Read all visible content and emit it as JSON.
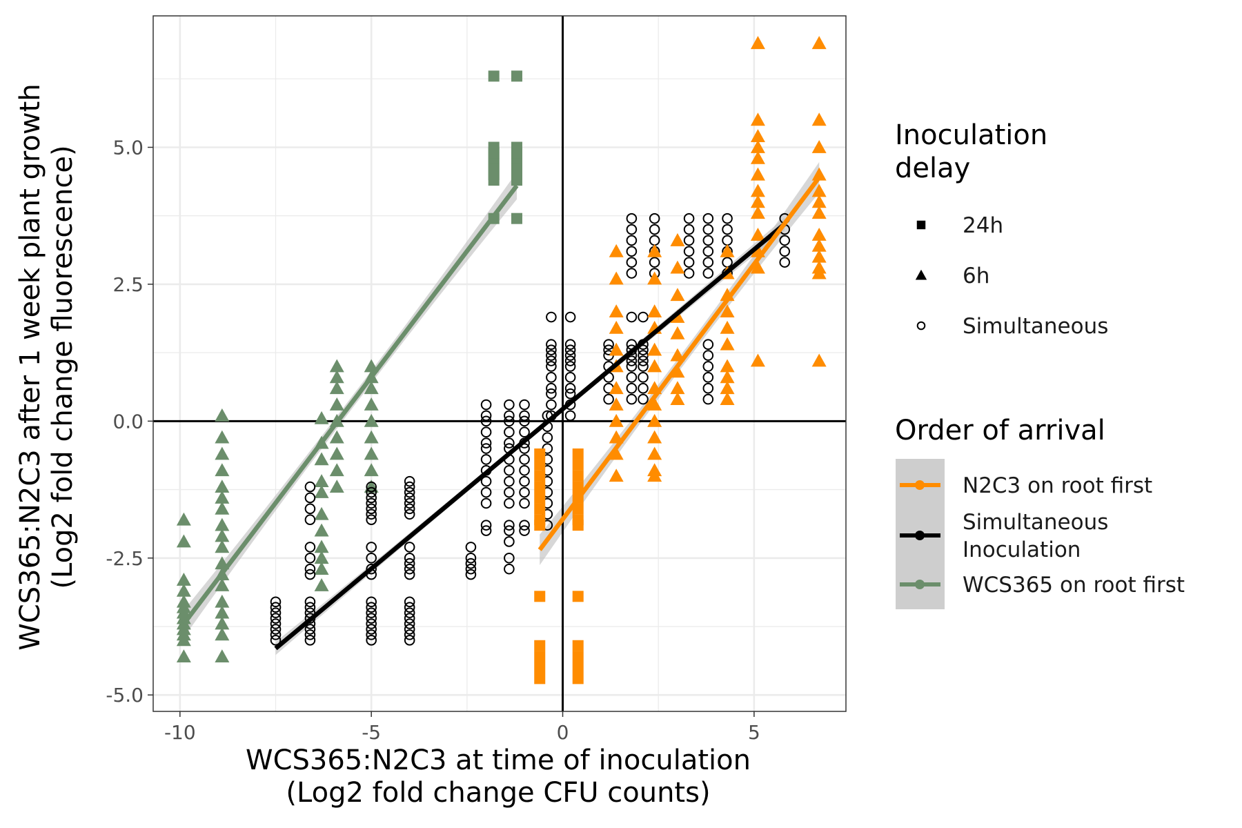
{
  "chart_data": {
    "type": "scatter",
    "xlabel": [
      "WCS365:N2C3 at time of inoculation",
      "(Log2 fold change CFU counts)"
    ],
    "ylabel": [
      "WCS365:N2C3 after 1 week plant growth",
      "(Log2 fold change fluorescence)"
    ],
    "xlim": [
      -10.7,
      7.4
    ],
    "ylim": [
      -5.3,
      7.4
    ],
    "x_ticks": [
      -10,
      -5,
      0,
      5
    ],
    "x_tick_labels": [
      "-10",
      "-5",
      "0",
      "5"
    ],
    "y_ticks": [
      -5,
      -2.5,
      0,
      2.5,
      5
    ],
    "y_tick_labels": [
      "-5.0",
      "-2.5",
      "0.0",
      "2.5",
      "5.0"
    ],
    "grid": true,
    "reference_lines": {
      "x": 0,
      "y": 0
    },
    "colors": {
      "n2c3_first": "#ff8c00",
      "simultaneous": "#000000",
      "wcs365_first": "#6b8e6b",
      "ribbon": "#bdbdbd",
      "grid": "#ebebeb",
      "tick": "#4d4d4d"
    },
    "legends": [
      {
        "title": [
          "Inoculation",
          " delay"
        ],
        "entries": [
          {
            "label": "24h",
            "shape": "square"
          },
          {
            "label": "6h",
            "shape": "triangle"
          },
          {
            "label": "Simultaneous",
            "shape": "circle-open"
          }
        ]
      },
      {
        "title": [
          "Order of arrival"
        ],
        "entries": [
          {
            "label": [
              "N2C3 on root first"
            ],
            "color": "#ff8c00"
          },
          {
            "label": [
              "Simultaneous",
              "Inoculation"
            ],
            "color": "#000000"
          },
          {
            "label": [
              "WCS365 on root first"
            ],
            "color": "#6b8e6b"
          }
        ]
      }
    ],
    "fits": [
      {
        "order": "WCS365 on root first",
        "color": "#6b8e6b",
        "x": [
          -9.9,
          -1.2
        ],
        "y": [
          -3.7,
          4.3
        ],
        "ci": 0.25
      },
      {
        "order": "Simultaneous Inoculation",
        "color": "#000000",
        "x": [
          -7.5,
          5.8
        ],
        "y": [
          -4.15,
          3.6
        ],
        "ci": 0.12
      },
      {
        "order": "N2C3 on root first",
        "color": "#ff8c00",
        "x": [
          -0.6,
          6.7
        ],
        "y": [
          -2.35,
          4.45
        ],
        "ci": 0.28
      }
    ],
    "series": [
      {
        "order": "WCS365 on root first",
        "delay": "24h",
        "shape": "square",
        "color": "#6b8e6b",
        "groups": [
          {
            "x": -1.8,
            "y": [
              6.3,
              5.0,
              4.9,
              4.8,
              4.7,
              4.6,
              4.5,
              4.4,
              3.7
            ]
          },
          {
            "x": -1.2,
            "y": [
              6.3,
              5.0,
              4.9,
              4.8,
              4.7,
              4.6,
              4.5,
              4.4,
              3.7
            ]
          }
        ]
      },
      {
        "order": "WCS365 on root first",
        "delay": "6h",
        "shape": "triangle",
        "color": "#6b8e6b",
        "groups": [
          {
            "x": -9.9,
            "y": [
              -1.8,
              -2.2,
              -2.9,
              -3.1,
              -3.3,
              -3.4,
              -3.5,
              -3.6,
              -3.7,
              -3.8,
              -3.9,
              -4.0,
              -4.3
            ]
          },
          {
            "x": -8.9,
            "y": [
              0.1,
              -0.3,
              -0.6,
              -0.9,
              -1.2,
              -1.4,
              -1.6,
              -1.9,
              -2.1,
              -2.3,
              -2.6,
              -2.8,
              -3.0,
              -3.3,
              -3.5,
              -3.7,
              -3.9,
              -4.3
            ]
          },
          {
            "x": -6.3,
            "y": [
              0.05,
              -0.4,
              -0.7,
              -1.1,
              -1.3,
              -1.7,
              -2.0,
              -2.3,
              -2.5,
              -2.7,
              -3.0
            ]
          },
          {
            "x": -5.9,
            "y": [
              1.0,
              0.8,
              0.6,
              0.3,
              0.0,
              -0.3,
              -0.6,
              -0.9,
              -1.2
            ]
          },
          {
            "x": -5.0,
            "y": [
              1.0,
              0.8,
              0.6,
              0.3,
              0.0,
              -0.3,
              -0.6,
              -0.9,
              -1.2
            ]
          }
        ]
      },
      {
        "order": "Simultaneous Inoculation",
        "delay": "Simultaneous",
        "shape": "circle-open",
        "color": "#000000",
        "groups": [
          {
            "x": -7.5,
            "y": [
              -3.3,
              -3.4,
              -3.5,
              -3.6,
              -3.7,
              -3.8,
              -3.9,
              -4.0
            ]
          },
          {
            "x": -6.6,
            "y": [
              -1.2,
              -1.4,
              -1.6,
              -1.8,
              -2.3,
              -2.5,
              -2.7,
              -2.8,
              -3.3,
              -3.4,
              -3.5,
              -3.6,
              -3.7,
              -3.8,
              -3.9,
              -4.0
            ]
          },
          {
            "x": -5.0,
            "y": [
              -1.2,
              -1.3,
              -1.4,
              -1.5,
              -1.6,
              -1.7,
              -1.8,
              -2.3,
              -2.5,
              -2.7,
              -2.8,
              -3.3,
              -3.4,
              -3.5,
              -3.6,
              -3.7,
              -3.8,
              -3.9,
              -4.0
            ]
          },
          {
            "x": -4.0,
            "y": [
              -1.1,
              -1.2,
              -1.3,
              -1.4,
              -1.5,
              -1.6,
              -1.7,
              -2.3,
              -2.5,
              -2.6,
              -2.7,
              -2.8,
              -3.3,
              -3.4,
              -3.5,
              -3.6,
              -3.7,
              -3.8,
              -3.9,
              -4.0
            ]
          },
          {
            "x": -2.4,
            "y": [
              -2.3,
              -2.5,
              -2.6,
              -2.7,
              -2.8
            ]
          },
          {
            "x": -2.0,
            "y": [
              0.3,
              0.1,
              0.0,
              -0.2,
              -0.4,
              -0.5,
              -0.7,
              -0.9,
              -1.1,
              -1.3,
              -1.5,
              -1.9,
              -2.0
            ]
          },
          {
            "x": -1.4,
            "y": [
              0.3,
              0.1,
              0.0,
              -0.2,
              -0.4,
              -0.5,
              -0.7,
              -0.9,
              -1.1,
              -1.3,
              -1.5,
              -1.9,
              -2.0,
              -2.2,
              -2.5,
              -2.7
            ]
          },
          {
            "x": -1.0,
            "y": [
              0.3,
              0.1,
              0.0,
              -0.2,
              -0.4,
              -0.5,
              -0.7,
              -0.9,
              -1.1,
              -1.3,
              -1.5,
              -1.9,
              -2.0
            ]
          },
          {
            "x": -0.4,
            "y": [
              0.1,
              -0.1,
              -0.3,
              -0.5,
              -0.7,
              -0.9,
              -1.1,
              -1.3,
              -1.5,
              -1.7,
              -1.9
            ]
          },
          {
            "x": -0.3,
            "y": [
              1.9,
              1.4,
              1.3,
              1.2,
              1.1,
              1.0,
              0.8,
              0.6,
              0.5,
              0.3,
              0.1
            ]
          },
          {
            "x": 0.2,
            "y": [
              1.9,
              1.4,
              1.3,
              1.2,
              1.1,
              1.0,
              0.8,
              0.6,
              0.5,
              0.3,
              0.1
            ]
          },
          {
            "x": 1.2,
            "y": [
              1.4,
              1.3,
              1.2,
              1.0,
              0.8,
              0.6,
              0.4
            ]
          },
          {
            "x": 1.8,
            "y": [
              3.7,
              3.5,
              3.3,
              3.1,
              2.9,
              2.7,
              1.9,
              1.4,
              1.3,
              1.2,
              1.1,
              1.0,
              0.8,
              0.6,
              0.4
            ]
          },
          {
            "x": 2.1,
            "y": [
              1.9,
              1.4,
              1.3,
              1.2,
              1.1,
              1.0,
              0.8,
              0.6,
              0.4
            ]
          },
          {
            "x": 2.4,
            "y": [
              3.7,
              3.5,
              3.3,
              3.1,
              2.9,
              2.7
            ]
          },
          {
            "x": 3.3,
            "y": [
              3.7,
              3.5,
              3.3,
              3.1,
              2.9,
              2.7
            ]
          },
          {
            "x": 3.8,
            "y": [
              3.7,
              3.5,
              3.3,
              3.1,
              2.9,
              2.7,
              1.4,
              1.2,
              1.0,
              0.8,
              0.6,
              0.4
            ]
          },
          {
            "x": 4.3,
            "y": [
              3.7,
              3.5,
              3.3,
              3.1,
              2.9,
              2.7
            ]
          },
          {
            "x": 5.8,
            "y": [
              3.7,
              3.5,
              3.3,
              3.1,
              2.9
            ]
          }
        ]
      },
      {
        "order": "N2C3 on root first",
        "delay": "24h",
        "shape": "square",
        "color": "#ff8c00",
        "groups": [
          {
            "x": -0.6,
            "y": [
              -0.6,
              -0.8,
              -1.0,
              -1.2,
              -1.4,
              -1.6,
              -1.8,
              -1.9,
              -3.2,
              -4.1,
              -4.3,
              -4.5,
              -4.7
            ]
          },
          {
            "x": 0.4,
            "y": [
              -0.6,
              -0.8,
              -1.0,
              -1.2,
              -1.4,
              -1.6,
              -1.8,
              -1.9,
              -3.2,
              -4.1,
              -4.3,
              -4.5,
              -4.7
            ]
          }
        ]
      },
      {
        "order": "N2C3 on root first",
        "delay": "6h",
        "shape": "triangle",
        "color": "#ff8c00",
        "groups": [
          {
            "x": 1.4,
            "y": [
              3.1,
              2.6,
              2.0,
              1.7,
              1.3,
              1.0,
              0.6,
              0.3,
              0.0,
              -0.3,
              -0.6,
              -1.0
            ]
          },
          {
            "x": 2.4,
            "y": [
              3.1,
              2.6,
              2.0,
              1.7,
              1.3,
              1.0,
              0.6,
              0.3,
              0.0,
              -0.3,
              -0.6,
              -0.9,
              -1.0
            ]
          },
          {
            "x": 3.0,
            "y": [
              3.3,
              2.8,
              2.3,
              1.9,
              1.6,
              1.2,
              0.9,
              0.6,
              0.4
            ]
          },
          {
            "x": 4.3,
            "y": [
              3.1,
              2.7,
              2.3,
              2.0,
              1.7,
              1.4,
              1.0,
              0.8,
              0.6,
              0.4
            ]
          },
          {
            "x": 5.1,
            "y": [
              6.9,
              5.5,
              5.2,
              5.0,
              4.8,
              4.5,
              4.2,
              4.0,
              3.8,
              3.4,
              3.1,
              2.8,
              1.1
            ]
          },
          {
            "x": 6.7,
            "y": [
              6.9,
              5.5,
              5.0,
              4.5,
              4.2,
              4.0,
              3.8,
              3.4,
              3.2,
              3.0,
              2.8,
              2.7,
              1.1
            ]
          }
        ]
      }
    ]
  }
}
